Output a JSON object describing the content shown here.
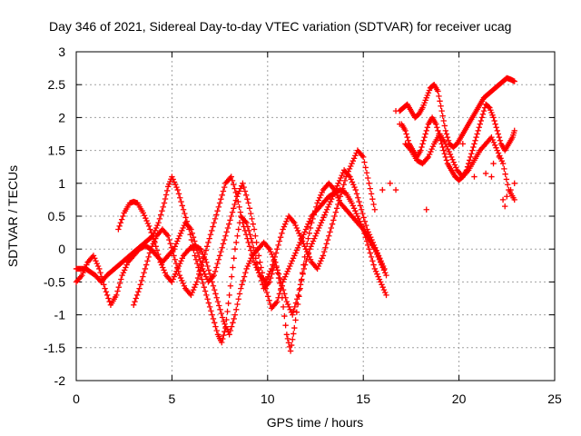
{
  "chart_data": {
    "type": "scatter",
    "title": "Day 346 of 2021, Sidereal Day-to-day VTEC variation (SDTVAR) for receiver ucag",
    "xlabel": "GPS time / hours",
    "ylabel": "SDTVAR / TECUs",
    "xlim": [
      0,
      25
    ],
    "ylim": [
      -2,
      3
    ],
    "xticks": [
      "0",
      "5",
      "10",
      "15",
      "20",
      "25"
    ],
    "yticks": [
      "-2",
      "-1.5",
      "-1",
      "-0.5",
      "0",
      "0.5",
      "1",
      "1.5",
      "2",
      "2.5",
      "3"
    ],
    "grid": true,
    "marker": "+",
    "color": "#ff0000",
    "series": [
      {
        "x": [
          0.0,
          0.5,
          1.0,
          1.3,
          1.6,
          2.0,
          2.4,
          2.8,
          3.2,
          3.6,
          4.0,
          4.3,
          4.6,
          4.8,
          5.0,
          5.3,
          5.6,
          5.9,
          6.2,
          6.5,
          6.8,
          7.1,
          7.4,
          7.6,
          7.8,
          8.0,
          8.3,
          8.6,
          8.9,
          9.2,
          9.5,
          9.8,
          10.1,
          10.4,
          10.7,
          11.0,
          11.2,
          11.4,
          11.7,
          12.0,
          12.3,
          12.6,
          12.9,
          13.2,
          13.5,
          13.8,
          14.1,
          14.4,
          14.7,
          15.0,
          15.2,
          15.4,
          15.6,
          15.9,
          16.2
        ],
        "y": [
          -0.3,
          -0.3,
          -0.4,
          -0.5,
          -0.4,
          -0.3,
          -0.2,
          -0.1,
          0.0,
          0.1,
          0.2,
          0.4,
          0.7,
          0.95,
          1.1,
          0.9,
          0.6,
          0.3,
          -0.1,
          -0.4,
          -0.7,
          -1.0,
          -1.3,
          -1.42,
          -1.2,
          -0.7,
          0.0,
          0.5,
          0.4,
          0.1,
          -0.3,
          -0.6,
          -0.5,
          -0.2,
          -0.6,
          -1.3,
          -1.55,
          -1.2,
          -0.6,
          0.0,
          0.4,
          0.7,
          0.9,
          1.0,
          0.9,
          0.7,
          0.6,
          0.5,
          0.4,
          0.3,
          0.2,
          0.1,
          0.0,
          -0.2,
          -0.4
        ]
      },
      {
        "x": [
          0.0,
          0.3,
          0.6,
          0.9,
          1.2,
          1.5,
          1.8,
          2.1,
          2.4,
          2.7,
          3.0,
          3.3,
          3.6,
          3.9,
          4.2,
          4.5,
          4.8,
          5.1,
          5.4,
          5.7,
          6.0,
          6.3,
          6.6,
          6.9,
          7.2,
          7.5,
          7.8,
          8.1,
          8.4,
          8.7,
          9.0,
          9.3,
          9.6,
          9.9,
          10.2,
          10.5,
          10.8,
          11.1,
          11.4,
          11.7,
          12.0,
          12.3,
          12.6,
          12.9,
          13.2,
          13.5,
          13.8,
          14.1,
          14.4,
          14.7,
          15.0,
          15.3,
          15.6,
          15.9,
          16.2
        ],
        "y": [
          -0.5,
          -0.4,
          -0.2,
          -0.1,
          -0.3,
          -0.6,
          -0.85,
          -0.7,
          -0.4,
          -0.2,
          -0.1,
          0.0,
          0.05,
          0.0,
          -0.1,
          -0.2,
          -0.1,
          0.0,
          0.2,
          0.4,
          0.3,
          0.0,
          -0.3,
          -0.5,
          -0.4,
          -0.1,
          0.2,
          0.5,
          0.8,
          1.0,
          0.7,
          0.3,
          -0.2,
          -0.6,
          -0.9,
          -0.8,
          -0.5,
          -0.3,
          -0.1,
          0.1,
          0.3,
          0.5,
          0.6,
          0.7,
          0.8,
          0.85,
          0.9,
          0.85,
          0.7,
          0.5,
          0.3,
          0.0,
          -0.3,
          -0.5,
          -0.7
        ]
      },
      {
        "x": [
          2.2,
          2.5,
          2.8,
          3.0,
          3.2,
          3.5,
          3.8,
          4.1,
          4.4,
          4.7,
          5.0,
          5.3,
          5.6,
          5.9,
          6.2,
          6.5,
          6.8,
          7.1,
          7.4,
          7.7,
          8.0,
          8.3,
          8.6,
          8.9,
          9.2,
          9.5,
          9.8,
          10.1,
          10.4,
          10.7,
          11.0,
          11.3,
          11.6,
          11.9,
          12.2,
          12.5,
          12.8,
          13.1,
          13.4,
          13.7,
          14.0,
          14.3,
          14.6,
          14.9,
          15.2,
          15.5,
          15.8,
          16.1
        ],
        "y": [
          0.3,
          0.55,
          0.7,
          0.72,
          0.7,
          0.55,
          0.35,
          0.1,
          -0.2,
          -0.4,
          -0.5,
          -0.3,
          -0.1,
          0.0,
          0.05,
          0.0,
          -0.2,
          -0.5,
          -0.8,
          -1.1,
          -1.3,
          -1.0,
          -0.6,
          -0.3,
          -0.1,
          0.0,
          0.1,
          0.0,
          -0.2,
          -0.5,
          -0.8,
          -1.0,
          -0.7,
          -0.3,
          0.0,
          0.2,
          0.4,
          0.6,
          0.8,
          1.0,
          1.2,
          1.1,
          0.9,
          0.6,
          0.3,
          0.1,
          -0.1,
          -0.3
        ]
      },
      {
        "x": [
          3.0,
          3.3,
          3.6,
          3.9,
          4.2,
          4.5,
          4.8,
          5.1,
          5.4,
          5.7,
          6.0,
          6.3,
          6.6,
          6.9,
          7.2,
          7.5,
          7.8,
          8.1,
          8.4,
          8.7,
          9.0,
          9.3,
          9.6,
          9.9,
          10.2,
          10.5,
          10.8,
          11.1,
          11.4,
          11.7,
          12.0,
          12.3,
          12.6,
          12.9,
          13.2,
          13.5,
          13.8,
          14.1,
          14.4,
          14.7,
          15.0,
          15.3,
          15.6
        ],
        "y": [
          -0.85,
          -0.6,
          -0.3,
          0.0,
          0.2,
          0.3,
          0.2,
          -0.1,
          -0.4,
          -0.6,
          -0.7,
          -0.5,
          -0.2,
          0.1,
          0.4,
          0.7,
          1.0,
          1.1,
          0.8,
          0.4,
          0.1,
          -0.2,
          -0.4,
          -0.5,
          -0.3,
          0.0,
          0.3,
          0.5,
          0.4,
          0.2,
          0.0,
          -0.2,
          -0.3,
          -0.1,
          0.2,
          0.5,
          0.8,
          1.1,
          1.3,
          1.5,
          1.4,
          1.0,
          0.6
        ]
      },
      {
        "x": [
          16.9,
          17.1,
          17.3,
          17.5,
          17.7,
          17.9,
          18.1,
          18.3,
          18.5,
          18.7,
          18.9,
          19.1,
          19.3,
          19.5,
          19.7,
          19.9,
          20.1,
          20.3,
          20.5,
          20.7,
          20.9,
          21.1,
          21.3,
          21.5,
          21.7,
          21.9,
          22.1,
          22.3,
          22.5,
          22.7,
          22.9
        ],
        "y": [
          2.1,
          2.15,
          2.2,
          2.1,
          2.0,
          2.05,
          2.15,
          2.3,
          2.45,
          2.5,
          2.4,
          2.1,
          1.8,
          1.6,
          1.55,
          1.6,
          1.7,
          1.8,
          1.9,
          2.0,
          2.1,
          2.2,
          2.3,
          2.35,
          2.4,
          2.45,
          2.5,
          2.55,
          2.6,
          2.58,
          2.55
        ]
      },
      {
        "x": [
          17.0,
          17.2,
          17.4,
          17.6,
          17.8,
          18.0,
          18.2,
          18.4,
          18.6,
          18.8,
          19.0,
          19.2,
          19.4,
          19.6,
          19.8,
          20.0,
          20.2,
          20.4,
          20.6,
          20.8,
          21.0,
          21.2,
          21.4,
          21.6,
          21.8,
          22.0,
          22.2,
          22.4,
          22.6,
          22.8,
          22.9
        ],
        "y": [
          1.9,
          1.8,
          1.6,
          1.5,
          1.4,
          1.5,
          1.7,
          1.9,
          2.0,
          1.9,
          1.7,
          1.5,
          1.3,
          1.2,
          1.1,
          1.05,
          1.1,
          1.2,
          1.4,
          1.6,
          1.8,
          2.0,
          2.2,
          2.15,
          2.0,
          1.8,
          1.6,
          1.5,
          1.6,
          1.7,
          1.8
        ]
      },
      {
        "x": [
          17.2,
          17.5,
          17.8,
          18.1,
          18.4,
          18.7,
          19.0,
          19.3,
          19.6,
          19.9,
          20.2,
          20.5,
          20.8,
          21.1,
          21.4,
          21.7,
          22.0,
          22.3,
          22.6,
          22.9
        ],
        "y": [
          1.6,
          1.5,
          1.35,
          1.3,
          1.4,
          1.6,
          1.75,
          1.6,
          1.4,
          1.2,
          1.1,
          1.2,
          1.35,
          1.5,
          1.6,
          1.7,
          1.5,
          1.3,
          0.9,
          0.75
        ]
      },
      {
        "x": [
          16.7,
          16.9,
          18.3,
          20.8,
          21.4,
          21.7,
          22.1,
          22.3,
          22.5,
          22.7,
          22.9
        ],
        "y": [
          2.1,
          1.9,
          0.6,
          1.1,
          1.15,
          1.1,
          1.4,
          0.75,
          0.8,
          0.9,
          1.0
        ]
      },
      {
        "x": [
          16.0,
          16.4,
          16.7,
          20.2,
          21.8,
          22.4
        ],
        "y": [
          0.9,
          1.0,
          0.9,
          1.6,
          1.3,
          0.65
        ]
      }
    ]
  }
}
